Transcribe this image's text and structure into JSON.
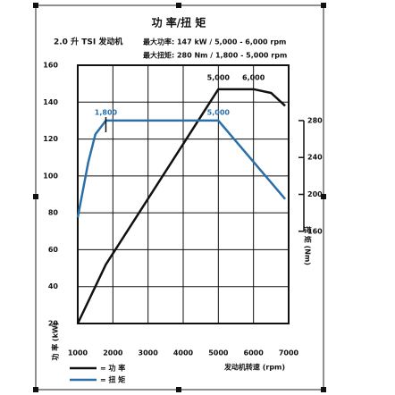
{
  "chart_data": {
    "type": "line",
    "title": "功 率/扭 矩",
    "subtitle": "2.0 升 TSI 发动机",
    "notes": [
      "最大功率: 147 kW / 5,000 - 6,000 rpm",
      "最大扭矩: 280 Nm / 1,800 - 5,000 rpm"
    ],
    "xlabel": "发动机转速 (rpm)",
    "ylabel": "功 率 (kW)",
    "y2label": "扭 矩 (Nm)",
    "xlim": [
      1000,
      7000
    ],
    "xticks": [
      1000,
      2000,
      3000,
      4000,
      5000,
      6000,
      7000
    ],
    "ylim": [
      20,
      160
    ],
    "yticks": [
      20,
      40,
      60,
      80,
      100,
      120,
      140,
      160
    ],
    "y2lim": [
      60,
      340
    ],
    "y2ticks": [
      160,
      200,
      240,
      280
    ],
    "grid": true,
    "series": [
      {
        "name": "= 功 率",
        "color": "#111111",
        "x": [
          1000,
          1800,
          5000,
          5500,
          6000,
          6500,
          6900
        ],
        "values": [
          20,
          52,
          147,
          147,
          147,
          145,
          138
        ]
      },
      {
        "name": "= 扭 矩",
        "color": "#2a6fa8",
        "axis": "y2",
        "x": [
          1000,
          1300,
          1500,
          1800,
          5000,
          6900
        ],
        "values": [
          175,
          235,
          265,
          280,
          280,
          195
        ]
      }
    ],
    "annotations": [
      {
        "text": "1,800",
        "x": 1800
      },
      {
        "text": "5,000",
        "x": 5000
      },
      {
        "text": "5,000",
        "x": 5000
      },
      {
        "text": "6,000",
        "x": 6000
      }
    ]
  }
}
